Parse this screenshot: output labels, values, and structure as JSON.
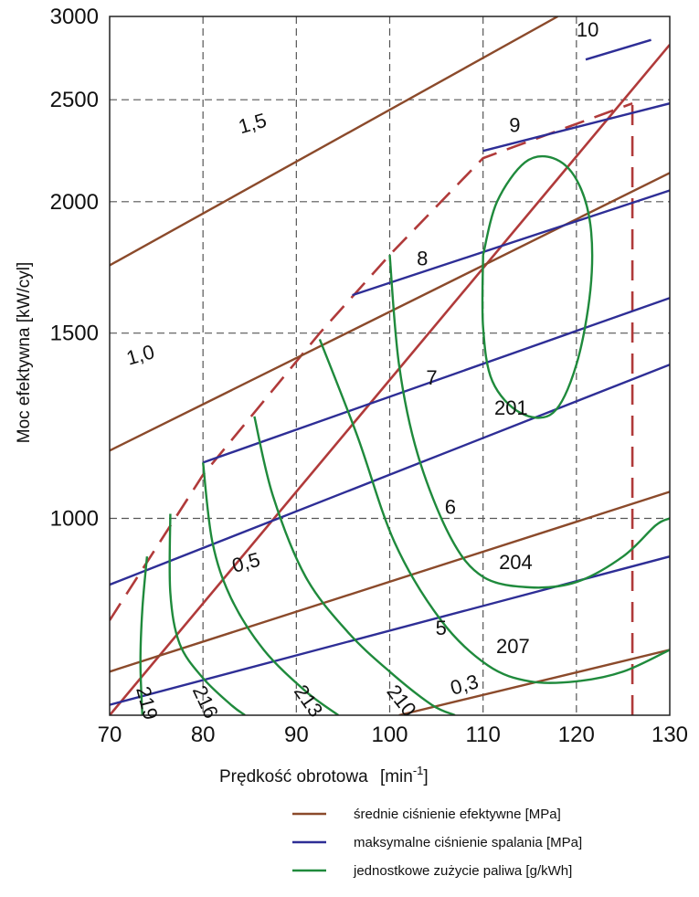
{
  "chart_data": {
    "type": "line",
    "title": "",
    "xlabel": "Prędkość obrotowa",
    "xunit": "min",
    "xunit_exp": "-1",
    "ylabel": "Moc efektywna [kW/cyl]",
    "xlim": [
      70,
      130
    ],
    "ylim": [
      650,
      3000
    ],
    "yscale": "log",
    "grid": true,
    "x_ticks": [
      "70",
      "80",
      "90",
      "100",
      "110",
      "120",
      "130"
    ],
    "y_ticks": [
      "1000",
      "1500",
      "2000",
      "2500",
      "3000"
    ],
    "colors": {
      "mean_pressure": "#8b4a2b",
      "max_pressure": "#2e2e96",
      "fuel": "#1f8a3c",
      "limit": "#b03a3a",
      "grid": "#555555"
    },
    "legend": {
      "position": "bottom-right",
      "entries": [
        {
          "label": "średnie ciśnienie efektywne [MPa]",
          "color": "#8b4a2b"
        },
        {
          "label": "maksymalne ciśnienie spalania [MPa]",
          "color": "#2e2e96"
        },
        {
          "label": "jednostkowe zużycie paliwa [g/kWh]",
          "color": "#1f8a3c"
        }
      ]
    },
    "mean_effective_pressure": [
      {
        "label": "1,5",
        "points": [
          [
            70,
            1740
          ],
          [
            118,
            3000
          ]
        ]
      },
      {
        "label": "1,0",
        "points": [
          [
            70,
            1160
          ],
          [
            130,
            2130
          ]
        ]
      },
      {
        "label": "0,5",
        "points": [
          [
            70,
            715
          ],
          [
            130,
            1060
          ]
        ]
      },
      {
        "label": "0,3",
        "points": [
          [
            101,
            650
          ],
          [
            130,
            750
          ]
        ]
      }
    ],
    "max_combustion_pressure": [
      {
        "label": "10",
        "points": [
          [
            121,
            2730
          ],
          [
            128,
            2850
          ]
        ]
      },
      {
        "label": "9",
        "points": [
          [
            110,
            2235
          ],
          [
            130,
            2480
          ]
        ]
      },
      {
        "label": "8",
        "points": [
          [
            96,
            1630
          ],
          [
            130,
            2050
          ]
        ]
      },
      {
        "label": "7",
        "points": [
          [
            80,
            1130
          ],
          [
            130,
            1620
          ]
        ]
      },
      {
        "label": "6",
        "points": [
          [
            70,
            865
          ],
          [
            130,
            1400
          ]
        ]
      },
      {
        "label": "5",
        "points": [
          [
            70,
            665
          ],
          [
            130,
            920
          ]
        ]
      }
    ],
    "fuel_consumption": [
      {
        "label": "201",
        "points": [
          [
            110,
            1780
          ],
          [
            111.5,
            2000
          ],
          [
            114.5,
            2180
          ],
          [
            117.5,
            2200
          ],
          [
            120,
            2100
          ],
          [
            121.5,
            1900
          ],
          [
            121.5,
            1650
          ],
          [
            120,
            1400
          ],
          [
            117.5,
            1260
          ],
          [
            114,
            1260
          ],
          [
            111,
            1350
          ],
          [
            110,
            1520
          ],
          [
            110,
            1780
          ]
        ]
      },
      {
        "label": "204",
        "points": [
          [
            100,
            1780
          ],
          [
            101,
            1400
          ],
          [
            103,
            1150
          ],
          [
            106.5,
            960
          ],
          [
            110,
            880
          ],
          [
            115,
            860
          ],
          [
            120,
            870
          ],
          [
            125,
            920
          ],
          [
            128.5,
            985
          ],
          [
            130,
            1000
          ]
        ]
      },
      {
        "label": "207",
        "points": [
          [
            92.5,
            1480
          ],
          [
            96.5,
            1200
          ],
          [
            100.5,
            950
          ],
          [
            105.5,
            800
          ],
          [
            110.5,
            725
          ],
          [
            115,
            700
          ],
          [
            120,
            700
          ],
          [
            125,
            715
          ],
          [
            130,
            750
          ]
        ]
      },
      {
        "label": "210",
        "points": [
          [
            85.5,
            1250
          ],
          [
            87.5,
            1050
          ],
          [
            91,
            880
          ],
          [
            95.5,
            780
          ],
          [
            100,
            715
          ],
          [
            104.5,
            665
          ],
          [
            107,
            650
          ]
        ]
      },
      {
        "label": "213",
        "points": [
          [
            80,
            1130
          ],
          [
            81,
            950
          ],
          [
            83,
            840
          ],
          [
            86.5,
            750
          ],
          [
            91,
            685
          ],
          [
            94.5,
            650
          ]
        ]
      },
      {
        "label": "216",
        "points": [
          [
            76.5,
            1010
          ],
          [
            76.5,
            850
          ],
          [
            77.5,
            760
          ],
          [
            80,
            705
          ],
          [
            83,
            665
          ],
          [
            84.5,
            650
          ]
        ]
      },
      {
        "label": "219",
        "points": [
          [
            74,
            920
          ],
          [
            73.5,
            820
          ],
          [
            73.3,
            730
          ],
          [
            73.5,
            650
          ]
        ]
      }
    ],
    "limit_lines": [
      {
        "style": "solid",
        "points": [
          [
            70,
            650
          ],
          [
            130,
            2820
          ]
        ]
      },
      {
        "style": "dashed",
        "points": [
          [
            70,
            800
          ],
          [
            80,
            1100
          ],
          [
            92.5,
            1500
          ],
          [
            100,
            1780
          ],
          [
            110,
            2200
          ],
          [
            126,
            2480
          ]
        ]
      },
      {
        "style": "dashed",
        "points": [
          [
            126,
            650
          ],
          [
            126,
            2480
          ]
        ]
      }
    ]
  }
}
